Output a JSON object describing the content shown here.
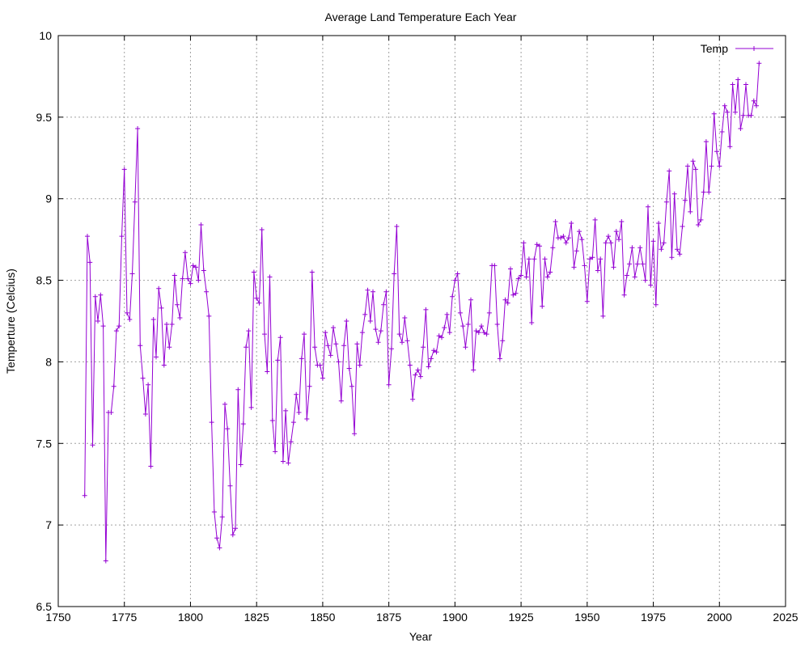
{
  "chart_data": {
    "type": "line",
    "title": "Average Land Temperature Each Year",
    "xlabel": "Year",
    "ylabel": "Temperture (Celcius)",
    "xlim": [
      1750,
      2025
    ],
    "ylim": [
      6.5,
      10
    ],
    "xticks": [
      1750,
      1775,
      1800,
      1825,
      1850,
      1875,
      1900,
      1925,
      1950,
      1975,
      2000,
      2025
    ],
    "yticks": [
      6.5,
      7,
      7.5,
      8,
      8.5,
      9,
      9.5,
      10
    ],
    "ytick_labels": [
      "6.5",
      "7",
      "7.5",
      "8",
      "8.5",
      "9",
      "9.5",
      "10"
    ],
    "grid": true,
    "legend_position": "top-right",
    "series": [
      {
        "name": "Temp",
        "color": "#9400d3",
        "marker": "plus",
        "x": [
          1760,
          1761,
          1762,
          1763,
          1764,
          1765,
          1766,
          1767,
          1768,
          1769,
          1770,
          1771,
          1772,
          1773,
          1774,
          1775,
          1776,
          1777,
          1778,
          1779,
          1780,
          1781,
          1782,
          1783,
          1784,
          1785,
          1786,
          1787,
          1788,
          1789,
          1790,
          1791,
          1792,
          1793,
          1794,
          1795,
          1796,
          1797,
          1798,
          1799,
          1800,
          1801,
          1802,
          1803,
          1804,
          1805,
          1806,
          1807,
          1808,
          1809,
          1810,
          1811,
          1812,
          1813,
          1814,
          1815,
          1816,
          1817,
          1818,
          1819,
          1820,
          1821,
          1822,
          1823,
          1824,
          1825,
          1826,
          1827,
          1828,
          1829,
          1830,
          1831,
          1832,
          1833,
          1834,
          1835,
          1836,
          1837,
          1838,
          1839,
          1840,
          1841,
          1842,
          1843,
          1844,
          1845,
          1846,
          1847,
          1848,
          1849,
          1850,
          1851,
          1852,
          1853,
          1854,
          1855,
          1856,
          1857,
          1858,
          1859,
          1860,
          1861,
          1862,
          1863,
          1864,
          1865,
          1866,
          1867,
          1868,
          1869,
          1870,
          1871,
          1872,
          1873,
          1874,
          1875,
          1876,
          1877,
          1878,
          1879,
          1880,
          1881,
          1882,
          1883,
          1884,
          1885,
          1886,
          1887,
          1888,
          1889,
          1890,
          1891,
          1892,
          1893,
          1894,
          1895,
          1896,
          1897,
          1898,
          1899,
          1900,
          1901,
          1902,
          1903,
          1904,
          1905,
          1906,
          1907,
          1908,
          1909,
          1910,
          1911,
          1912,
          1913,
          1914,
          1915,
          1916,
          1917,
          1918,
          1919,
          1920,
          1921,
          1922,
          1923,
          1924,
          1925,
          1926,
          1927,
          1928,
          1929,
          1930,
          1931,
          1932,
          1933,
          1934,
          1935,
          1936,
          1937,
          1938,
          1939,
          1940,
          1941,
          1942,
          1943,
          1944,
          1945,
          1946,
          1947,
          1948,
          1949,
          1950,
          1951,
          1952,
          1953,
          1954,
          1955,
          1956,
          1957,
          1958,
          1959,
          1960,
          1961,
          1962,
          1963,
          1964,
          1965,
          1966,
          1967,
          1968,
          1969,
          1970,
          1971,
          1972,
          1973,
          1974,
          1975,
          1976,
          1977,
          1978,
          1979,
          1980,
          1981,
          1982,
          1983,
          1984,
          1985,
          1986,
          1987,
          1988,
          1989,
          1990,
          1991,
          1992,
          1993,
          1994,
          1995,
          1996,
          1997,
          1998,
          1999,
          2000,
          2001,
          2002,
          2003,
          2004,
          2005,
          2006,
          2007,
          2008,
          2009,
          2010,
          2011,
          2012,
          2013,
          2014,
          2015
        ],
        "values": [
          7.18,
          8.77,
          8.61,
          7.49,
          8.4,
          8.25,
          8.41,
          8.22,
          6.78,
          7.69,
          7.69,
          7.85,
          8.19,
          8.22,
          8.77,
          9.18,
          8.3,
          8.26,
          8.54,
          8.98,
          9.43,
          8.1,
          7.9,
          7.68,
          7.86,
          7.36,
          8.26,
          8.03,
          8.45,
          8.33,
          7.98,
          8.23,
          8.09,
          8.23,
          8.53,
          8.35,
          8.27,
          8.51,
          8.67,
          8.51,
          8.48,
          8.59,
          8.58,
          8.5,
          8.84,
          8.56,
          8.43,
          8.28,
          7.63,
          7.08,
          6.92,
          6.86,
          7.05,
          7.74,
          7.59,
          7.24,
          6.94,
          6.98,
          7.83,
          7.37,
          7.62,
          8.09,
          8.19,
          7.72,
          8.55,
          8.39,
          8.36,
          8.81,
          8.17,
          7.94,
          8.52,
          7.64,
          7.45,
          8.01,
          8.15,
          7.39,
          7.7,
          7.38,
          7.51,
          7.63,
          7.8,
          7.69,
          8.02,
          8.17,
          7.65,
          7.85,
          8.55,
          8.09,
          7.98,
          7.98,
          7.9,
          8.18,
          8.1,
          8.04,
          8.21,
          8.11,
          8.0,
          7.76,
          8.1,
          8.25,
          7.96,
          7.85,
          7.56,
          8.11,
          7.98,
          8.18,
          8.29,
          8.44,
          8.25,
          8.43,
          8.2,
          8.12,
          8.19,
          8.35,
          8.43,
          7.86,
          8.08,
          8.54,
          8.83,
          8.17,
          8.12,
          8.27,
          8.13,
          7.98,
          7.77,
          7.92,
          7.95,
          7.91,
          8.09,
          8.32,
          7.97,
          8.02,
          8.07,
          8.06,
          8.16,
          8.15,
          8.21,
          8.29,
          8.18,
          8.4,
          8.5,
          8.54,
          8.3,
          8.22,
          8.09,
          8.23,
          8.38,
          7.95,
          8.19,
          8.18,
          8.22,
          8.18,
          8.17,
          8.3,
          8.59,
          8.59,
          8.23,
          8.02,
          8.13,
          8.38,
          8.36,
          8.57,
          8.41,
          8.42,
          8.51,
          8.53,
          8.73,
          8.52,
          8.63,
          8.24,
          8.63,
          8.72,
          8.71,
          8.34,
          8.63,
          8.52,
          8.55,
          8.7,
          8.86,
          8.76,
          8.76,
          8.77,
          8.73,
          8.76,
          8.85,
          8.58,
          8.68,
          8.8,
          8.75,
          8.59,
          8.37,
          8.63,
          8.64,
          8.87,
          8.56,
          8.63,
          8.28,
          8.73,
          8.77,
          8.73,
          8.58,
          8.8,
          8.75,
          8.86,
          8.41,
          8.53,
          8.6,
          8.7,
          8.52,
          8.6,
          8.7,
          8.6,
          8.5,
          8.95,
          8.47,
          8.74,
          8.35,
          8.85,
          8.69,
          8.73,
          8.98,
          9.17,
          8.64,
          9.03,
          8.69,
          8.66,
          8.83,
          8.99,
          9.2,
          8.92,
          9.23,
          9.18,
          8.84,
          8.87,
          9.04,
          9.35,
          9.04,
          9.2,
          9.52,
          9.29,
          9.2,
          9.41,
          9.57,
          9.53,
          9.32,
          9.7,
          9.53,
          9.73,
          9.43,
          9.51,
          9.7,
          9.51,
          9.51,
          9.6,
          9.57,
          9.83
        ]
      }
    ]
  }
}
